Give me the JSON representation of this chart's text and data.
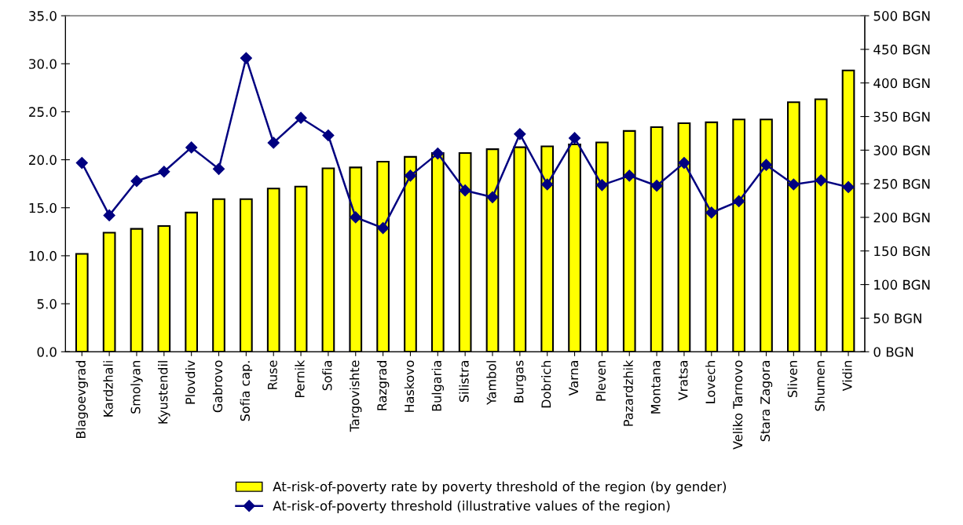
{
  "chart_data": {
    "type": "bar",
    "categories": [
      "Blagoevgrad",
      "Kardzhali",
      "Smolyan",
      "Kyustendil",
      "Plovdiv",
      "Gabrovo",
      "Sofia cap.",
      "Ruse",
      "Pernik",
      "Sofia",
      "Targovishte",
      "Razgrad",
      "Haskovo",
      "Bulgaria",
      "Silistra",
      "Yambol",
      "Burgas",
      "Dobrich",
      "Varna",
      "Pleven",
      "Pazardzhik",
      "Montana",
      "Vratsa",
      "Lovech",
      "Veliko Tarnovo",
      "Stara Zagora",
      "Sliven",
      "Shumen",
      "Vidin"
    ],
    "series": [
      {
        "name": "At-risk-of-poverty rate by poverty threshold of the region (by gender)",
        "color": "#ffff00",
        "values": [
          10.2,
          12.4,
          12.8,
          13.1,
          14.5,
          15.9,
          15.9,
          17.0,
          17.2,
          19.1,
          19.2,
          19.8,
          20.3,
          20.7,
          20.7,
          21.1,
          21.3,
          21.4,
          21.6,
          21.8,
          23.0,
          23.4,
          23.8,
          23.9,
          24.2,
          24.2,
          26.0,
          26.3,
          29.3
        ]
      },
      {
        "name": "At-risk-of-poverty threshold (illustrative values of the region)",
        "type": "line",
        "axis": "y2",
        "color": "#000080",
        "marker": "diamond",
        "values": [
          281,
          203,
          254,
          268,
          304,
          272,
          437,
          311,
          348,
          322,
          200,
          184,
          262,
          295,
          240,
          230,
          324,
          249,
          318,
          248,
          262,
          247,
          281,
          207,
          224,
          278,
          249,
          255,
          245
        ]
      }
    ],
    "ylim": [
      0,
      35
    ],
    "yticks": [
      {
        "value": 0,
        "label": "0.0"
      },
      {
        "value": 5,
        "label": "5.0"
      },
      {
        "value": 10,
        "label": "10.0"
      },
      {
        "value": 15,
        "label": "15.0"
      },
      {
        "value": 20,
        "label": "20.0"
      },
      {
        "value": 25,
        "label": "25.0"
      },
      {
        "value": 30,
        "label": "30.0"
      },
      {
        "value": 35,
        "label": "35.0"
      }
    ],
    "y2lim": [
      0,
      500
    ],
    "y2ticks": [
      {
        "value": 0,
        "label": "0 BGN"
      },
      {
        "value": 50,
        "label": "50 BGN"
      },
      {
        "value": 100,
        "label": "100 BGN"
      },
      {
        "value": 150,
        "label": "150 BGN"
      },
      {
        "value": 200,
        "label": "200 BGN"
      },
      {
        "value": 250,
        "label": "250 BGN"
      },
      {
        "value": 300,
        "label": "300 BGN"
      },
      {
        "value": 350,
        "label": "350 BGN"
      },
      {
        "value": 400,
        "label": "400 BGN"
      },
      {
        "value": 450,
        "label": "450 BGN"
      },
      {
        "value": 500,
        "label": "500 BGN"
      }
    ],
    "grid": false,
    "legend": "bottom"
  }
}
